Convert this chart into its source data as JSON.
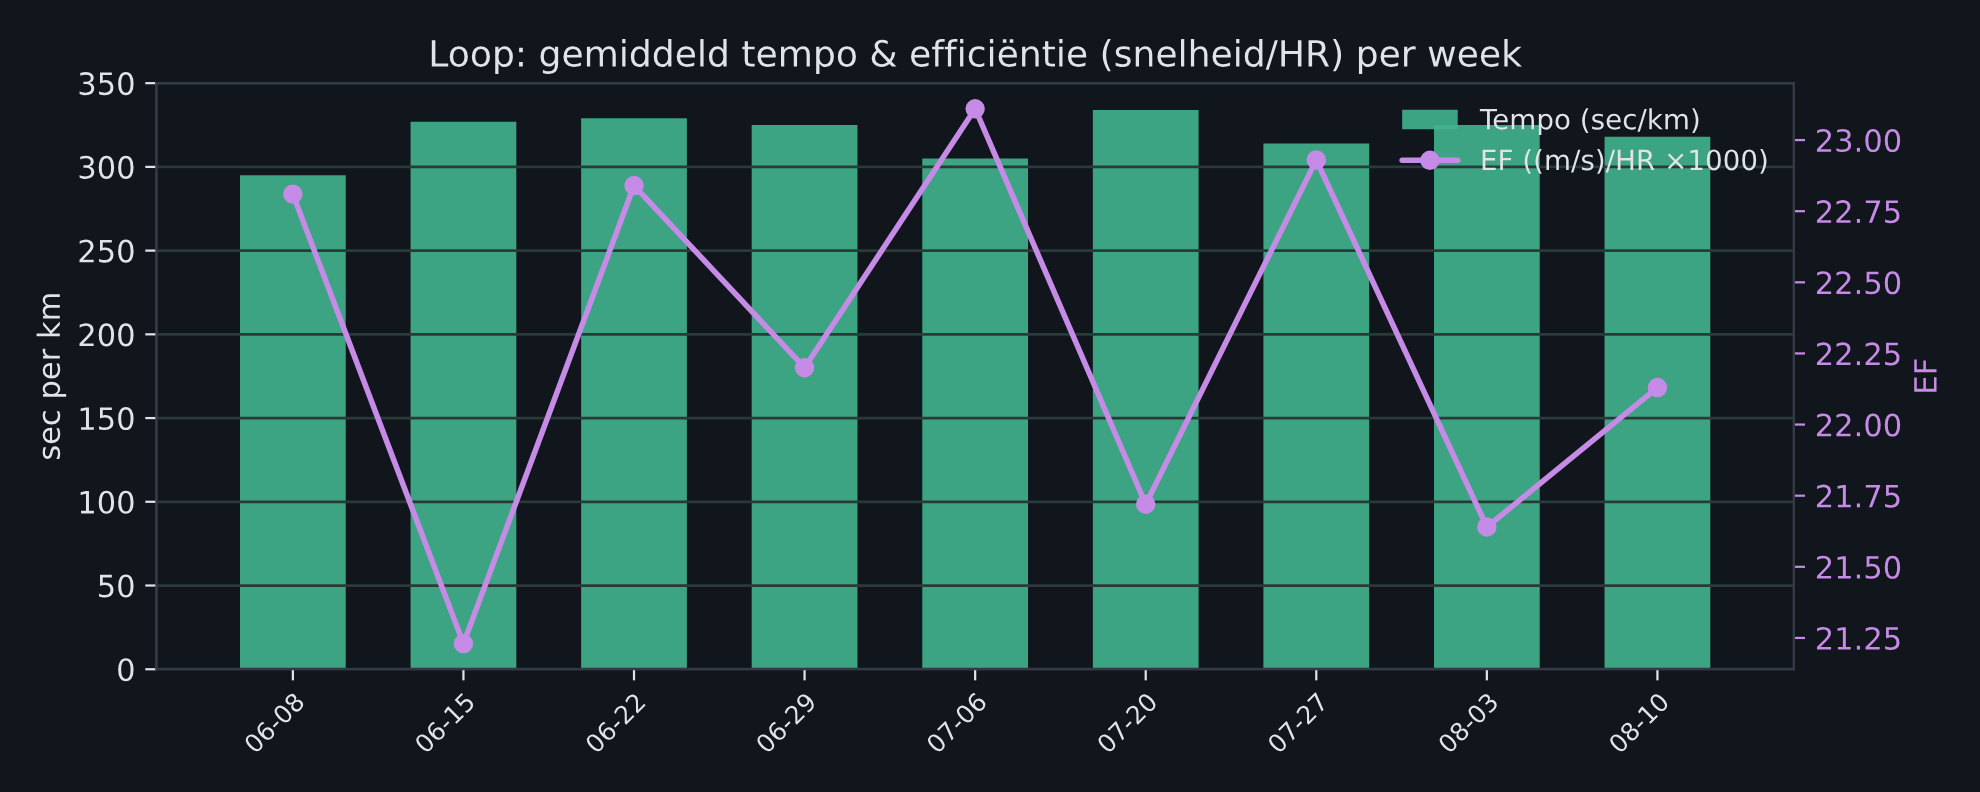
{
  "chart_data": {
    "type": "bar",
    "title": "Loop: gemiddeld tempo & efficiëntie (snelheid/HR) per week",
    "categories": [
      "06-08",
      "06-15",
      "06-22",
      "06-29",
      "07-06",
      "07-20",
      "07-27",
      "08-03",
      "08-10"
    ],
    "series": [
      {
        "name": "Tempo (sec/km)",
        "color": "#43b48f",
        "values": [
          295,
          327,
          329,
          325,
          305,
          334,
          314,
          325,
          318
        ]
      },
      {
        "name": "EF ((m/s)/HR ×1000)",
        "type": "line",
        "axis": "y2",
        "color": "#c58be6",
        "values": [
          22.81,
          21.23,
          22.84,
          22.2,
          23.11,
          21.72,
          22.93,
          21.64,
          22.13
        ]
      }
    ],
    "ylabel": "sec per km",
    "y2label": "EF",
    "ylim": [
      0,
      350
    ],
    "yticks": [
      0,
      50,
      100,
      150,
      200,
      250,
      300,
      350
    ],
    "y2lim": [
      21.14,
      23.2
    ],
    "y2ticks": [
      {
        "value": 21.25,
        "label": "21.25"
      },
      {
        "value": 21.5,
        "label": "21.50"
      },
      {
        "value": 21.75,
        "label": "21.75"
      },
      {
        "value": 22.0,
        "label": "22.00"
      },
      {
        "value": 22.25,
        "label": "22.25"
      },
      {
        "value": 22.5,
        "label": "22.50"
      },
      {
        "value": 22.75,
        "label": "22.75"
      },
      {
        "value": 23.0,
        "label": "23.00"
      }
    ],
    "grid": "y",
    "legend": "top right",
    "marker": "circle",
    "line_style": "solid"
  }
}
